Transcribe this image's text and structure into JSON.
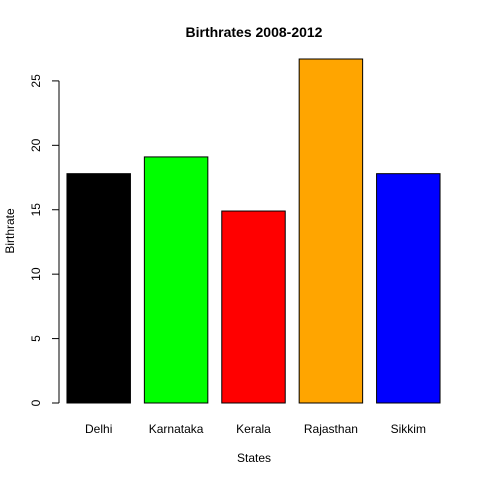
{
  "chart_data": {
    "type": "bar",
    "title": "Birthrates 2008-2012",
    "xlabel": "States",
    "ylabel": "Birthrate",
    "categories": [
      "Delhi",
      "Karnataka",
      "Kerala",
      "Rajasthan",
      "Sikkim"
    ],
    "values": [
      17.8,
      19.1,
      14.9,
      26.7,
      17.8
    ],
    "colors": [
      "#000000",
      "#00ff00",
      "#ff0000",
      "#ffa500",
      "#0000ff"
    ],
    "ylim": [
      0,
      26.7
    ],
    "yticks": [
      0,
      5,
      10,
      15,
      20,
      25
    ],
    "grid": false
  }
}
